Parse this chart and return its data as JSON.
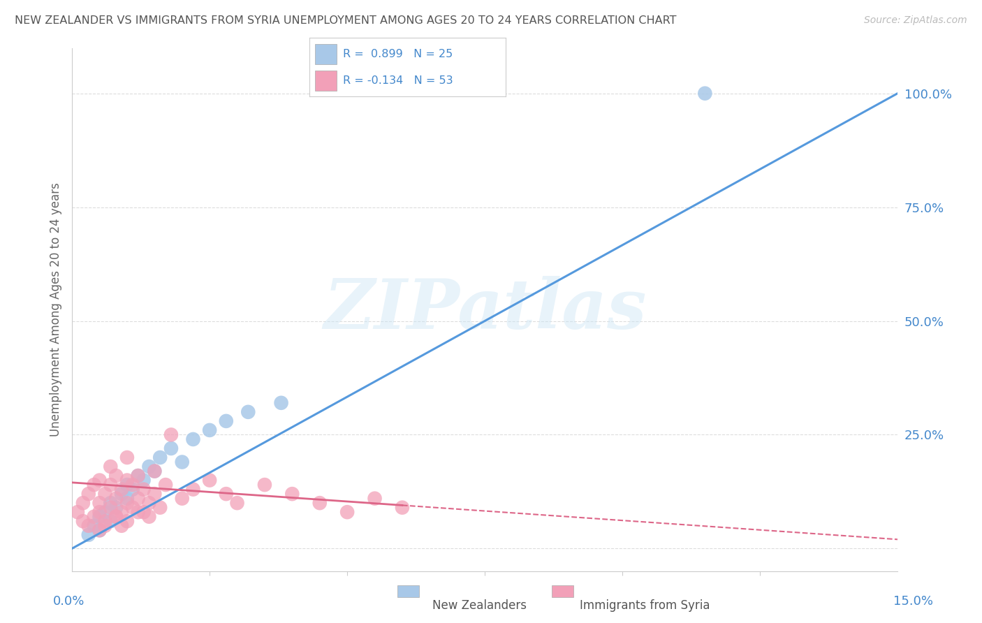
{
  "title": "NEW ZEALANDER VS IMMIGRANTS FROM SYRIA UNEMPLOYMENT AMONG AGES 20 TO 24 YEARS CORRELATION CHART",
  "source": "Source: ZipAtlas.com",
  "ylabel": "Unemployment Among Ages 20 to 24 years",
  "xlim": [
    0.0,
    15.0
  ],
  "ylim": [
    -5.0,
    110.0
  ],
  "yticks": [
    0,
    25,
    50,
    75,
    100
  ],
  "ytick_labels": [
    "",
    "25.0%",
    "50.0%",
    "75.0%",
    "100.0%"
  ],
  "color_nz": "#a8c8e8",
  "color_syria": "#f2a0b8",
  "color_nz_line": "#5599dd",
  "color_syria_line": "#dd6688",
  "color_axis": "#4488cc",
  "watermark_text": "ZIPatlas",
  "legend_line1": "R =  0.899   N = 25",
  "legend_line2": "R = -0.134   N = 53",
  "nz_line_x0": 0.0,
  "nz_line_y0": 0.0,
  "nz_line_x1": 15.0,
  "nz_line_y1": 100.0,
  "syria_line_x0": 0.0,
  "syria_line_y0": 14.5,
  "syria_line_x1": 15.0,
  "syria_line_y1": 2.0,
  "nz_scatter_x": [
    0.3,
    0.4,
    0.5,
    0.5,
    0.6,
    0.7,
    0.7,
    0.8,
    0.9,
    1.0,
    1.0,
    1.1,
    1.2,
    1.3,
    1.4,
    1.5,
    1.6,
    1.8,
    2.0,
    2.2,
    2.5,
    2.8,
    3.2,
    3.8,
    11.5
  ],
  "nz_scatter_y": [
    3,
    5,
    4,
    7,
    8,
    6,
    10,
    9,
    12,
    11,
    14,
    13,
    16,
    15,
    18,
    17,
    20,
    22,
    19,
    24,
    26,
    28,
    30,
    32,
    100
  ],
  "syria_scatter_x": [
    0.1,
    0.2,
    0.2,
    0.3,
    0.3,
    0.4,
    0.4,
    0.5,
    0.5,
    0.5,
    0.6,
    0.6,
    0.7,
    0.7,
    0.7,
    0.8,
    0.8,
    0.8,
    0.9,
    0.9,
    1.0,
    1.0,
    1.0,
    1.1,
    1.1,
    1.2,
    1.2,
    1.3,
    1.3,
    1.4,
    1.5,
    1.5,
    1.6,
    1.7,
    1.8,
    2.0,
    2.2,
    2.5,
    2.8,
    3.0,
    3.5,
    4.0,
    4.5,
    5.0,
    5.5,
    6.0,
    0.6,
    0.8,
    1.0,
    1.2,
    1.4,
    0.5,
    0.9
  ],
  "syria_scatter_y": [
    8,
    6,
    10,
    5,
    12,
    7,
    14,
    8,
    10,
    15,
    6,
    12,
    9,
    14,
    18,
    7,
    11,
    16,
    8,
    13,
    10,
    15,
    20,
    9,
    14,
    11,
    16,
    8,
    13,
    10,
    12,
    17,
    9,
    14,
    25,
    11,
    13,
    15,
    12,
    10,
    14,
    12,
    10,
    8,
    11,
    9,
    5,
    7,
    6,
    8,
    7,
    4,
    5
  ]
}
